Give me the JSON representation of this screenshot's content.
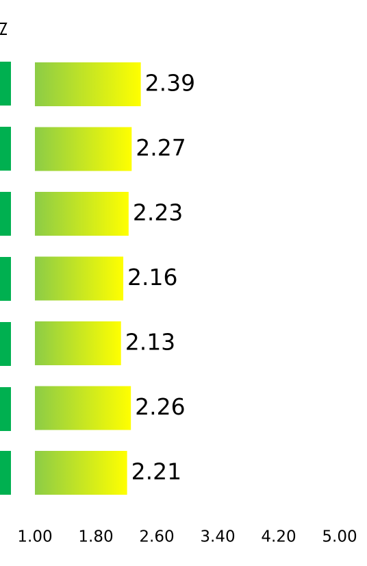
{
  "chart_data": {
    "type": "bar",
    "orientation": "horizontal",
    "values": [
      2.39,
      2.27,
      2.23,
      2.16,
      2.13,
      2.26,
      2.21
    ],
    "gradient": [
      "#8ccc46",
      "#ffff00"
    ],
    "xlim": [
      1,
      5
    ],
    "xticks": [
      {
        "value": 1,
        "label": "1.00"
      },
      {
        "value": 1.8,
        "label": "1.80"
      },
      {
        "value": 2.6,
        "label": "2.60"
      },
      {
        "value": 3.4,
        "label": "3.40"
      },
      {
        "value": 4.2,
        "label": "4.20"
      },
      {
        "value": 5,
        "label": "5.00"
      }
    ]
  }
}
